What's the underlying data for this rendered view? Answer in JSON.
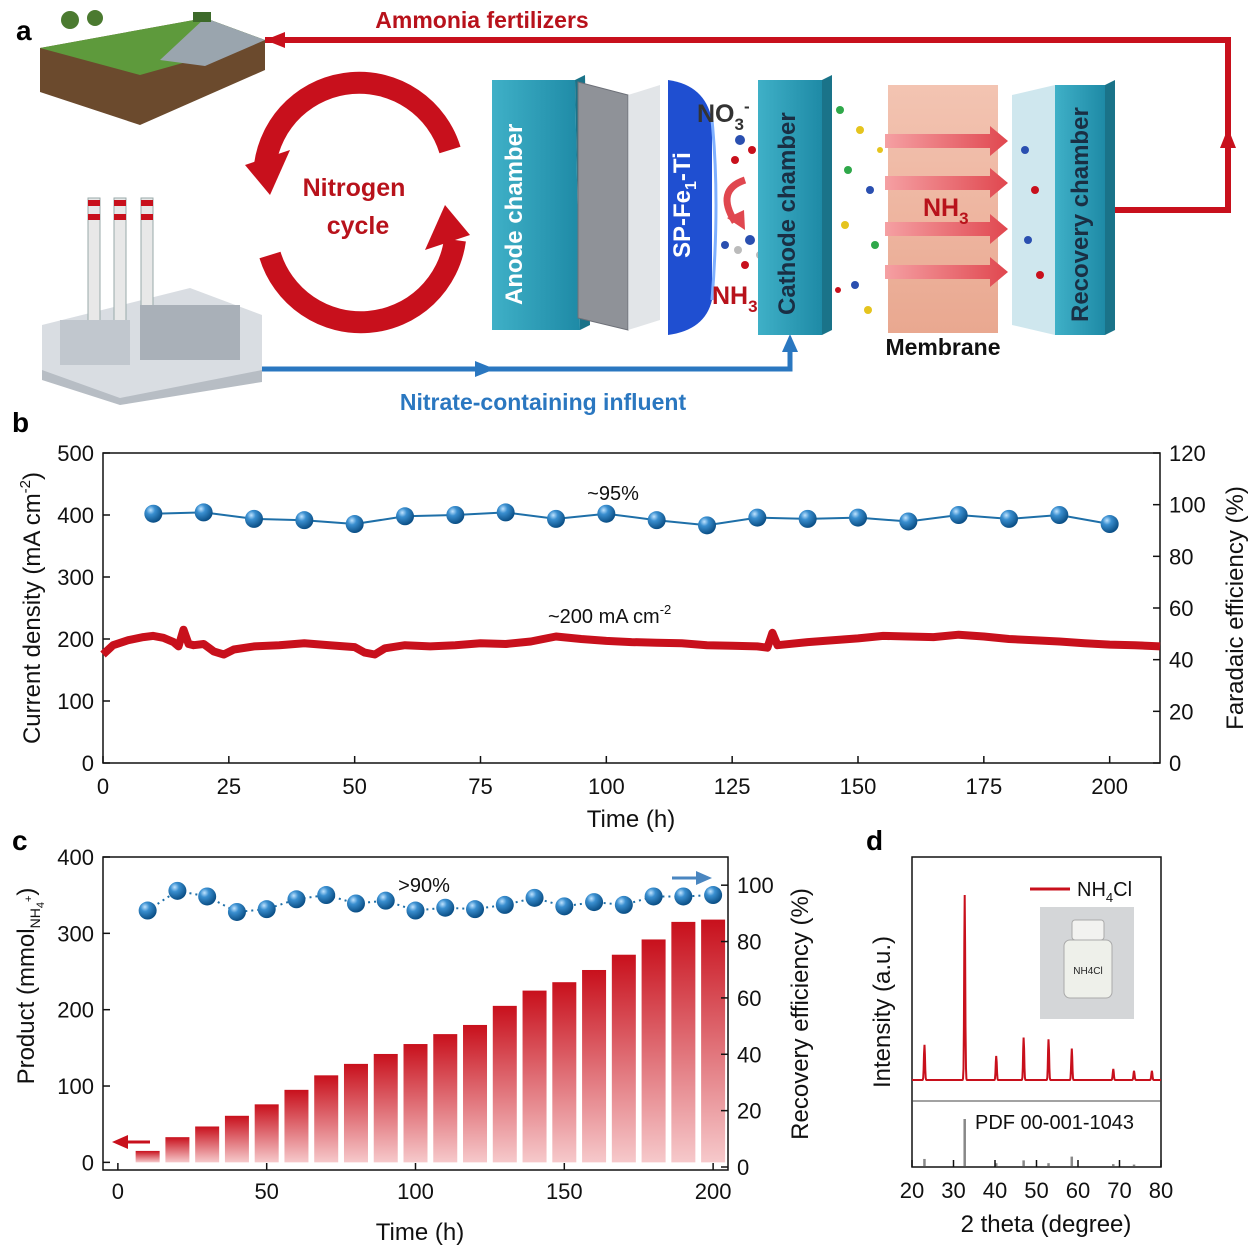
{
  "panels": {
    "a": {
      "letter": "a",
      "top_label": "Ammonia fertilizers",
      "cycle_label_1": "Nitrogen",
      "cycle_label_2": "cycle",
      "anode": "Anode chamber",
      "electrode": "SP-Fe",
      "electrode_sub": "1",
      "electrode_suffix": "-Ti",
      "no3": "NO",
      "no3_sub": "3",
      "no3_sup": "-",
      "nh3_left": "NH",
      "nh3_left_sub": "3",
      "cathode": "Cathode chamber",
      "nh3_mid": "NH",
      "nh3_mid_sub": "3",
      "membrane": "Membrane",
      "recovery": "Recovery chamber",
      "influent": "Nitrate-containing influent"
    },
    "b": {
      "letter": "b"
    },
    "c": {
      "letter": "c"
    },
    "d": {
      "letter": "d"
    }
  },
  "chart_data": [
    {
      "id": "b",
      "type": "line",
      "xlabel": "Time (h)",
      "ylabel_left": "Current density (mA cm",
      "ylabel_left_sup": "-2",
      "ylabel_left_suffix": ")",
      "ylabel_right": "Faradaic efficiency (%)",
      "xlim": [
        0,
        210
      ],
      "ylim_left": [
        0,
        500
      ],
      "ylim_right": [
        0,
        120
      ],
      "xticks": [
        "0",
        "25",
        "50",
        "75",
        "100",
        "125",
        "150",
        "175",
        "200"
      ],
      "yticks_left": [
        "0",
        "100",
        "200",
        "300",
        "400",
        "500"
      ],
      "yticks_right": [
        "0",
        "20",
        "40",
        "60",
        "80",
        "100",
        "120"
      ],
      "annotation_fe": "~95%",
      "annotation_current": "~200 mA cm",
      "annotation_current_sup": "-2",
      "series": [
        {
          "name": "Current density",
          "axis": "left",
          "color": "#c8101c",
          "x": [
            0,
            2,
            5,
            8,
            10,
            12,
            14,
            15,
            16,
            17,
            18,
            20,
            22,
            24,
            26,
            30,
            35,
            40,
            45,
            50,
            52,
            54,
            56,
            60,
            65,
            70,
            75,
            80,
            85,
            90,
            95,
            100,
            105,
            110,
            115,
            120,
            125,
            130,
            132,
            133,
            134,
            140,
            145,
            150,
            155,
            160,
            165,
            170,
            175,
            180,
            185,
            190,
            195,
            200,
            205,
            210
          ],
          "y": [
            175,
            190,
            198,
            203,
            205,
            202,
            195,
            188,
            215,
            192,
            190,
            192,
            180,
            175,
            183,
            188,
            190,
            193,
            190,
            187,
            178,
            175,
            185,
            190,
            188,
            190,
            193,
            192,
            196,
            204,
            200,
            197,
            195,
            194,
            193,
            190,
            189,
            188,
            186,
            210,
            190,
            195,
            198,
            201,
            205,
            204,
            203,
            207,
            204,
            200,
            198,
            196,
            193,
            191,
            190,
            188
          ]
        },
        {
          "name": "Faradaic efficiency",
          "axis": "right",
          "color": "#1e6fa8",
          "x": [
            10,
            20,
            30,
            40,
            50,
            60,
            70,
            80,
            90,
            100,
            110,
            120,
            130,
            140,
            150,
            160,
            170,
            180,
            190,
            200
          ],
          "y": [
            96.5,
            97,
            94.5,
            94,
            92.5,
            95.5,
            96,
            97,
            94.5,
            96.5,
            94,
            92,
            95,
            94.5,
            95,
            93.5,
            96,
            94.5,
            96,
            92.5
          ]
        }
      ]
    },
    {
      "id": "c",
      "type": "bar",
      "xlabel": "Time (h)",
      "ylabel_left": "Product (mmol",
      "ylabel_left_sub": "NH",
      "ylabel_left_subsub": "4",
      "ylabel_left_subsup": "+",
      "ylabel_left_suffix": ")",
      "ylabel_right": "Recovery efficiency (%)",
      "xlim": [
        -5,
        205
      ],
      "ylim_left": [
        -10,
        400
      ],
      "ylim_right": [
        0,
        110
      ],
      "xticks": [
        "0",
        "50",
        "100",
        "150",
        "200"
      ],
      "yticks_left": [
        "0",
        "100",
        "200",
        "300",
        "400"
      ],
      "yticks_right": [
        "0",
        "20",
        "40",
        "60",
        "80",
        "100"
      ],
      "annotation": ">90%",
      "series": [
        {
          "name": "Product",
          "axis": "left",
          "color": "#c8101c",
          "x": [
            10,
            20,
            30,
            40,
            50,
            60,
            70,
            80,
            90,
            100,
            110,
            120,
            130,
            140,
            150,
            160,
            170,
            180,
            190,
            200
          ],
          "values": [
            15,
            33,
            47,
            61,
            76,
            95,
            114,
            129,
            142,
            155,
            168,
            180,
            205,
            225,
            236,
            252,
            272,
            292,
            315,
            318
          ]
        },
        {
          "name": "Recovery efficiency",
          "axis": "right",
          "color": "#1e6fa8",
          "x": [
            10,
            20,
            30,
            40,
            50,
            60,
            70,
            80,
            90,
            100,
            110,
            120,
            130,
            140,
            150,
            160,
            170,
            180,
            190,
            200
          ],
          "y": [
            91,
            98,
            96,
            90.5,
            91.5,
            95,
            96.5,
            93.5,
            94.5,
            91,
            92,
            91.5,
            93,
            95.5,
            92.5,
            94,
            93,
            96,
            96,
            96.5
          ]
        }
      ]
    },
    {
      "id": "d",
      "type": "line",
      "xlabel": "2 theta (degree)",
      "ylabel": "Intensity (a.u.)",
      "xlim": [
        20,
        80
      ],
      "xticks": [
        "20",
        "30",
        "40",
        "50",
        "60",
        "70",
        "80"
      ],
      "legend": "NH",
      "legend_sub": "4",
      "legend_suffix": "Cl",
      "vial_label": "NH4Cl",
      "reference_label": "PDF 00-001-1043",
      "series": [
        {
          "name": "NH4Cl",
          "color": "#c8101c",
          "peaks": [
            [
              23,
              0.19
            ],
            [
              32.7,
              1.0
            ],
            [
              40.3,
              0.13
            ],
            [
              46.9,
              0.23
            ],
            [
              52.9,
              0.22
            ],
            [
              58.5,
              0.17
            ],
            [
              68.5,
              0.06
            ],
            [
              73.5,
              0.05
            ],
            [
              77.8,
              0.05
            ]
          ]
        },
        {
          "name": "PDF 00-001-1043",
          "color": "#888888",
          "sticks": [
            [
              23,
              0.15
            ],
            [
              32.7,
              1.0
            ],
            [
              40.3,
              0.06
            ],
            [
              46.9,
              0.12
            ],
            [
              52.9,
              0.06
            ],
            [
              58.5,
              0.2
            ],
            [
              68.5,
              0.04
            ],
            [
              73.5,
              0.03
            ]
          ]
        }
      ]
    }
  ]
}
